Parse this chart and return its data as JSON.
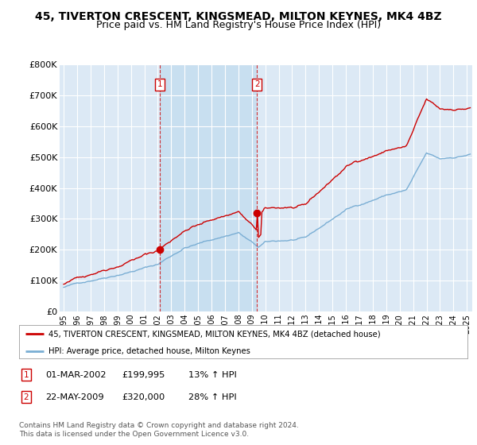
{
  "title": "45, TIVERTON CRESCENT, KINGSMEAD, MILTON KEYNES, MK4 4BZ",
  "subtitle": "Price paid vs. HM Land Registry's House Price Index (HPI)",
  "ylim": [
    0,
    800000
  ],
  "yticks": [
    0,
    100000,
    200000,
    300000,
    400000,
    500000,
    600000,
    700000,
    800000
  ],
  "ytick_labels": [
    "£0",
    "£100K",
    "£200K",
    "£300K",
    "£400K",
    "£500K",
    "£600K",
    "£700K",
    "£800K"
  ],
  "background_color": "#ffffff",
  "plot_bg_color": "#dce9f5",
  "highlight_bg_color": "#c8dff0",
  "grid_color": "#ffffff",
  "red_line_color": "#cc0000",
  "blue_line_color": "#7aaed4",
  "purchase1_date": 2002.17,
  "purchase1_price": 199995,
  "purchase2_date": 2009.38,
  "purchase2_price": 320000,
  "legend_label_red": "45, TIVERTON CRESCENT, KINGSMEAD, MILTON KEYNES, MK4 4BZ (detached house)",
  "legend_label_blue": "HPI: Average price, detached house, Milton Keynes",
  "footer1": "Contains HM Land Registry data © Crown copyright and database right 2024.",
  "footer2": "This data is licensed under the Open Government Licence v3.0.",
  "title_fontsize": 10,
  "subtitle_fontsize": 9
}
